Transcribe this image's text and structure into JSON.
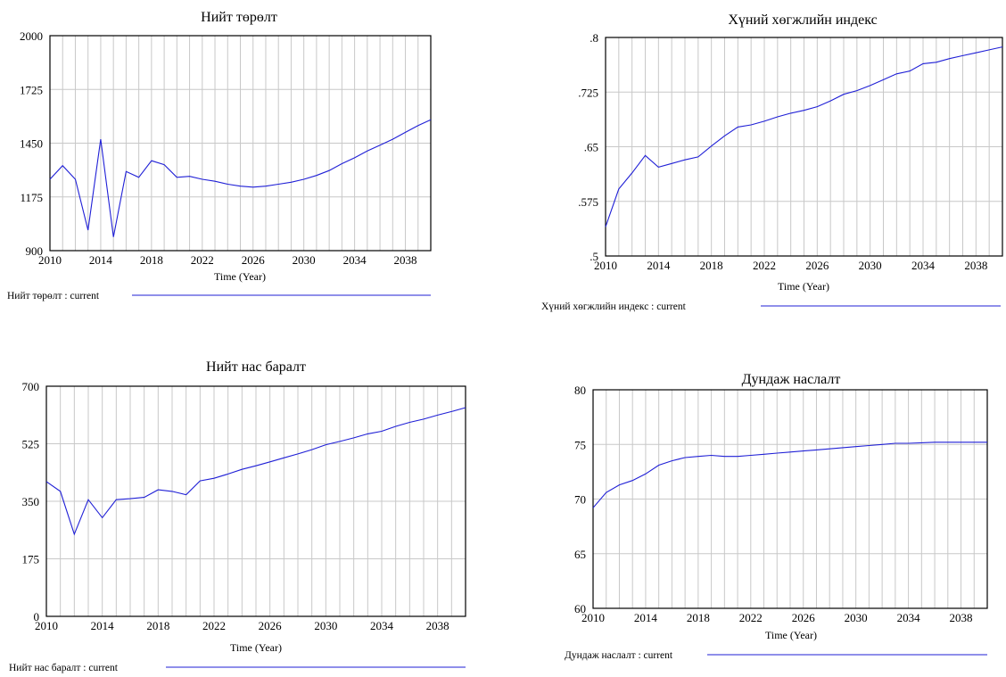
{
  "line_color": "#1f1fd6",
  "chart_data": [
    {
      "type": "line",
      "title": "Нийт төрөлт",
      "xlabel": "Time (Year)",
      "ylabel": "",
      "xlim": [
        2010,
        2040
      ],
      "ylim": [
        900,
        2000
      ],
      "yticks": [
        "900",
        "1175",
        "1450",
        "1725",
        "2000"
      ],
      "xticks": [
        "2010",
        "2014",
        "2018",
        "2022",
        "2026",
        "2030",
        "2034",
        "2038"
      ],
      "grid": true,
      "legend": "Нийт төрөлт : current",
      "series": [
        {
          "name": "Нийт төрөлт : current",
          "x": [
            2010,
            2011,
            2012,
            2013,
            2014,
            2015,
            2016,
            2017,
            2018,
            2019,
            2020,
            2021,
            2022,
            2023,
            2024,
            2025,
            2026,
            2027,
            2028,
            2029,
            2030,
            2031,
            2032,
            2033,
            2034,
            2035,
            2036,
            2037,
            2038,
            2039,
            2040
          ],
          "y": [
            1265,
            1335,
            1265,
            1005,
            1470,
            970,
            1305,
            1275,
            1360,
            1340,
            1275,
            1280,
            1265,
            1255,
            1240,
            1230,
            1225,
            1230,
            1240,
            1250,
            1265,
            1285,
            1310,
            1345,
            1375,
            1410,
            1440,
            1470,
            1505,
            1540,
            1570
          ]
        }
      ]
    },
    {
      "type": "line",
      "title": "Хүний хөгжлийн индекс",
      "xlabel": "Time (Year)",
      "ylabel": "",
      "xlim": [
        2010,
        2040
      ],
      "ylim": [
        0.5,
        0.8
      ],
      "yticks": [
        ".5",
        ".575",
        ".65",
        ".725",
        ".8"
      ],
      "xticks": [
        "2010",
        "2014",
        "2018",
        "2022",
        "2026",
        "2030",
        "2034",
        "2038"
      ],
      "grid": true,
      "legend": "Хүний хөгжлийн индекс : current",
      "series": [
        {
          "name": "Хүний хөгжлийн индекс : current",
          "x": [
            2010,
            2011,
            2012,
            2013,
            2014,
            2015,
            2016,
            2017,
            2018,
            2019,
            2020,
            2021,
            2022,
            2023,
            2024,
            2025,
            2026,
            2027,
            2028,
            2029,
            2030,
            2031,
            2032,
            2033,
            2034,
            2035,
            2036,
            2037,
            2038,
            2039,
            2040
          ],
          "y": [
            0.54,
            0.592,
            0.614,
            0.638,
            0.622,
            0.627,
            0.632,
            0.636,
            0.651,
            0.665,
            0.677,
            0.68,
            0.685,
            0.691,
            0.696,
            0.7,
            0.705,
            0.713,
            0.722,
            0.727,
            0.734,
            0.742,
            0.75,
            0.754,
            0.764,
            0.766,
            0.771,
            0.775,
            0.779,
            0.783,
            0.787
          ]
        }
      ]
    },
    {
      "type": "line",
      "title": "Нийт нас баралт",
      "xlabel": "Time (Year)",
      "ylabel": "",
      "xlim": [
        2010,
        2040
      ],
      "ylim": [
        0,
        700
      ],
      "yticks": [
        "0",
        "175",
        "350",
        "525",
        "700"
      ],
      "xticks": [
        "2010",
        "2014",
        "2018",
        "2022",
        "2026",
        "2030",
        "2034",
        "2038"
      ],
      "grid": true,
      "legend": "Нийт нас баралт : current",
      "series": [
        {
          "name": "Нийт нас баралт : current",
          "x": [
            2010,
            2011,
            2012,
            2013,
            2014,
            2015,
            2016,
            2017,
            2018,
            2019,
            2020,
            2021,
            2022,
            2023,
            2024,
            2025,
            2026,
            2027,
            2028,
            2029,
            2030,
            2031,
            2032,
            2033,
            2034,
            2035,
            2036,
            2037,
            2038,
            2039,
            2040
          ],
          "y": [
            410,
            380,
            250,
            355,
            300,
            355,
            358,
            362,
            385,
            380,
            370,
            412,
            420,
            433,
            447,
            458,
            470,
            482,
            494,
            507,
            522,
            532,
            543,
            555,
            563,
            578,
            590,
            600,
            612,
            623,
            635
          ]
        }
      ]
    },
    {
      "type": "line",
      "title": "Дундаж наслалт",
      "xlabel": "Time (Year)",
      "ylabel": "",
      "xlim": [
        2010,
        2040
      ],
      "ylim": [
        60,
        80
      ],
      "yticks": [
        "60",
        "65",
        "70",
        "75",
        "80"
      ],
      "xticks": [
        "2010",
        "2014",
        "2018",
        "2022",
        "2026",
        "2030",
        "2034",
        "2038"
      ],
      "grid": true,
      "legend": "Дундаж наслалт : current",
      "series": [
        {
          "name": "Дундаж наслалт : current",
          "x": [
            2010,
            2011,
            2012,
            2013,
            2014,
            2015,
            2016,
            2017,
            2018,
            2019,
            2020,
            2021,
            2022,
            2023,
            2024,
            2025,
            2026,
            2027,
            2028,
            2029,
            2030,
            2031,
            2032,
            2033,
            2034,
            2035,
            2036,
            2037,
            2038,
            2039,
            2040
          ],
          "y": [
            69.2,
            70.6,
            71.3,
            71.7,
            72.3,
            73.1,
            73.5,
            73.8,
            73.9,
            74.0,
            73.9,
            73.9,
            74.0,
            74.1,
            74.2,
            74.3,
            74.4,
            74.5,
            74.6,
            74.7,
            74.8,
            74.9,
            75.0,
            75.1,
            75.1,
            75.15,
            75.2,
            75.2,
            75.2,
            75.2,
            75.2
          ]
        }
      ]
    }
  ]
}
